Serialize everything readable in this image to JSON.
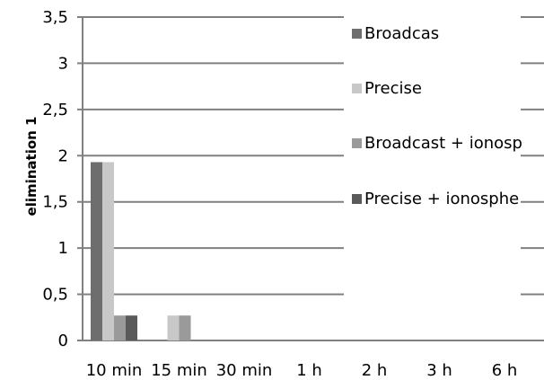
{
  "chart_data": {
    "type": "bar",
    "title": "",
    "xlabel": "",
    "ylabel": "elimination 1",
    "ylim": [
      0,
      3.5
    ],
    "yticks": [
      "0",
      "0,5",
      "1",
      "1,5",
      "2",
      "2,5",
      "3",
      "3,5"
    ],
    "grid": "horizontal",
    "legend_position": "right",
    "categories": [
      "10 min",
      "15 min",
      "30 min",
      "1 h",
      "2 h",
      "3 h",
      "6 h"
    ],
    "series": [
      {
        "name": "Broadcas",
        "color": "#6e6e6e",
        "values": [
          1.93,
          0,
          0,
          0,
          0,
          0,
          0
        ]
      },
      {
        "name": "Precise",
        "color": "#c8c8c8",
        "values": [
          1.93,
          0.27,
          0,
          0,
          0,
          0,
          0
        ]
      },
      {
        "name": "Broadcast + ionosp",
        "color": "#9a9a9a",
        "values": [
          0.27,
          0.27,
          0,
          0,
          0,
          0,
          0
        ]
      },
      {
        "name": "Precise + ionosphe",
        "color": "#5a5a5a",
        "values": [
          0.27,
          0,
          0,
          0,
          0,
          0,
          0
        ]
      }
    ]
  }
}
